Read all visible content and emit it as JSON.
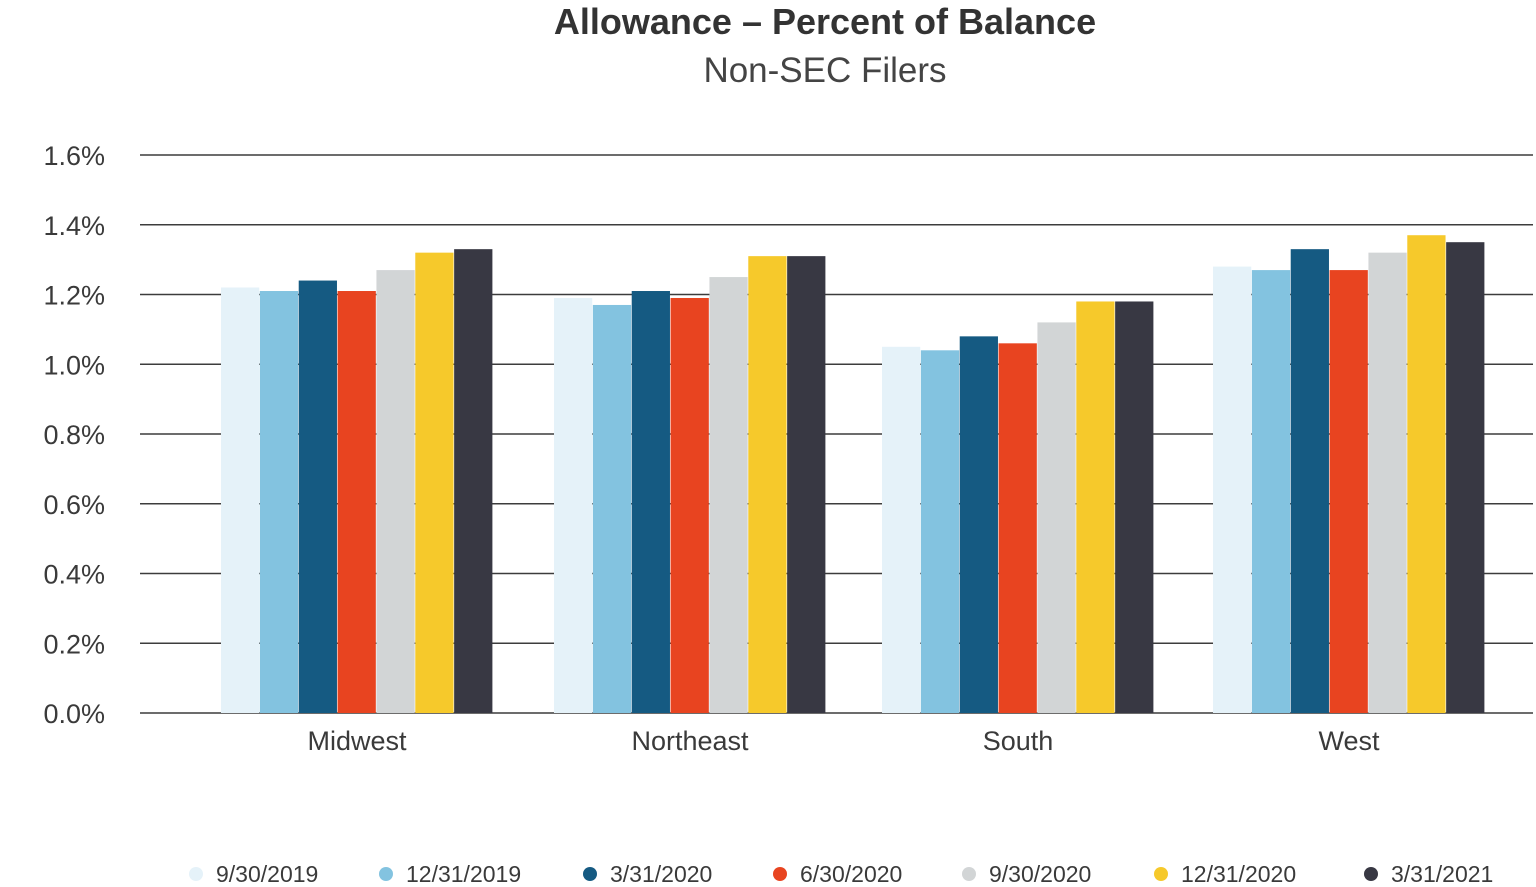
{
  "chart_data": {
    "type": "bar",
    "title": "Allowance – Percent of Balance",
    "subtitle": "Non-SEC Filers",
    "categories": [
      "Midwest",
      "Northeast",
      "South",
      "West"
    ],
    "yticks": [
      "0.0%",
      "0.2%",
      "0.4%",
      "0.6%",
      "0.8%",
      "1.0%",
      "1.2%",
      "1.4%",
      "1.6%"
    ],
    "ylim": [
      0,
      1.6
    ],
    "grid": true,
    "legend_position": "bottom",
    "series": [
      {
        "name": "9/30/2019",
        "color": "#e5f2f9",
        "values": [
          1.22,
          1.19,
          1.05,
          1.28
        ]
      },
      {
        "name": "12/31/2019",
        "color": "#83c3e0",
        "values": [
          1.21,
          1.17,
          1.04,
          1.27
        ]
      },
      {
        "name": "3/31/2020",
        "color": "#155a82",
        "values": [
          1.24,
          1.21,
          1.08,
          1.33
        ]
      },
      {
        "name": "6/30/2020",
        "color": "#e84420",
        "values": [
          1.21,
          1.19,
          1.06,
          1.27
        ]
      },
      {
        "name": "9/30/2020",
        "color": "#d2d5d6",
        "values": [
          1.27,
          1.25,
          1.12,
          1.32
        ]
      },
      {
        "name": "12/31/2020",
        "color": "#f6c92b",
        "values": [
          1.32,
          1.31,
          1.18,
          1.37
        ]
      },
      {
        "name": "3/31/2021",
        "color": "#383843",
        "values": [
          1.33,
          1.31,
          1.18,
          1.35
        ]
      }
    ]
  }
}
